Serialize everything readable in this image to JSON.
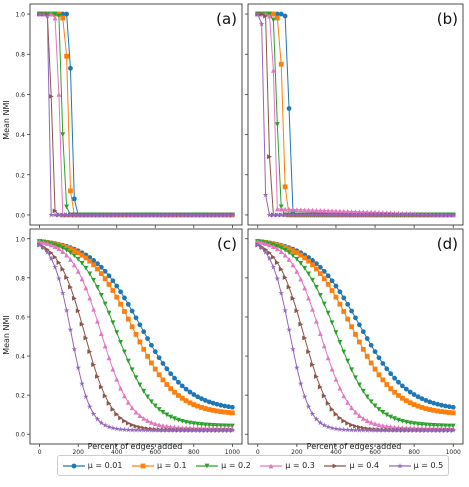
{
  "chart_data": {
    "type": "line",
    "title": "",
    "shared_xlabel": "Percent of edges added",
    "shared_ylabel": "Mean NMI",
    "series_names": [
      "μ = 0.01",
      "μ = 0.1",
      "μ = 0.2",
      "μ = 0.3",
      "μ = 0.4",
      "μ = 0.5"
    ],
    "series_colors": [
      "#1f77b4",
      "#ff7f0e",
      "#2ca02c",
      "#e377c2",
      "#8c564b",
      "#9467bd"
    ],
    "series_markers": [
      "circle",
      "square",
      "triangle-down",
      "triangle-up",
      "triangle-right",
      "star"
    ],
    "xlim": [
      -50,
      1050
    ],
    "ylim": [
      -0.05,
      1.05
    ],
    "xticks": [
      0,
      200,
      400,
      600,
      800,
      1000
    ],
    "yticks": [
      0.0,
      0.2,
      0.4,
      0.6,
      0.8,
      1.0
    ],
    "legend_position": "bottom-center",
    "grid": false,
    "panels": [
      {
        "label": "(a)",
        "series": [
          {
            "name": "μ = 0.01",
            "x": [
              0,
              20,
              40,
              60,
              80,
              100,
              120,
              140,
              160,
              180,
              200,
              1000
            ],
            "y": [
              1,
              1,
              1,
              1,
              1,
              1,
              1,
              1,
              0.73,
              0.08,
              0,
              0
            ]
          },
          {
            "name": "μ = 0.1",
            "x": [
              0,
              20,
              40,
              60,
              80,
              100,
              120,
              140,
              160,
              180,
              1000
            ],
            "y": [
              1,
              1,
              1,
              1,
              1,
              1,
              0.98,
              0.79,
              0.12,
              0,
              0
            ]
          },
          {
            "name": "μ = 0.2",
            "x": [
              0,
              20,
              40,
              60,
              80,
              100,
              120,
              140,
              160,
              1000
            ],
            "y": [
              1,
              1,
              1,
              1,
              1,
              0.99,
              0.4,
              0.04,
              0,
              0
            ]
          },
          {
            "name": "μ = 0.3",
            "x": [
              0,
              20,
              40,
              60,
              80,
              100,
              120,
              1000
            ],
            "y": [
              1,
              1,
              1,
              1,
              0.98,
              0.6,
              0,
              0
            ]
          },
          {
            "name": "μ = 0.4",
            "x": [
              0,
              20,
              40,
              60,
              80,
              100,
              1000
            ],
            "y": [
              1,
              1,
              1,
              0.59,
              0.02,
              0,
              0
            ]
          },
          {
            "name": "μ = 0.5",
            "x": [
              0,
              20,
              40,
              60,
              1000
            ],
            "y": [
              1,
              1,
              0.99,
              0,
              0
            ]
          }
        ]
      },
      {
        "label": "(b)",
        "series": [
          {
            "name": "μ = 0.01",
            "x": [
              0,
              20,
              40,
              60,
              80,
              100,
              120,
              140,
              160,
              180,
              200,
              1000
            ],
            "y": [
              1,
              1,
              1,
              1,
              1,
              1,
              1,
              0.99,
              0.53,
              0.02,
              0,
              0
            ]
          },
          {
            "name": "μ = 0.1",
            "x": [
              0,
              20,
              40,
              60,
              80,
              100,
              120,
              140,
              160,
              180,
              1000
            ],
            "y": [
              1,
              1,
              1,
              1,
              1,
              0.98,
              0.75,
              0.14,
              0,
              0,
              0
            ]
          },
          {
            "name": "μ = 0.2",
            "x": [
              0,
              20,
              40,
              60,
              80,
              100,
              120,
              140,
              1000
            ],
            "y": [
              1,
              1,
              1,
              1,
              0.97,
              0.45,
              0.04,
              0,
              0
            ]
          },
          {
            "name": "μ = 0.3",
            "x": [
              0,
              20,
              40,
              60,
              80,
              100,
              1000
            ],
            "y": [
              1,
              1,
              1,
              0.99,
              0.72,
              0.03,
              0
            ]
          },
          {
            "name": "μ = 0.4",
            "x": [
              0,
              20,
              40,
              60,
              80,
              1000
            ],
            "y": [
              1,
              1,
              0.99,
              0.29,
              0,
              0
            ]
          },
          {
            "name": "μ = 0.5",
            "x": [
              0,
              20,
              40,
              60,
              1000
            ],
            "y": [
              1,
              0.95,
              0.1,
              0,
              0
            ]
          }
        ]
      },
      {
        "label": "(c)",
        "curve_half_points": {
          "μ = 0.01": 520,
          "μ = 0.1": 480,
          "μ = 0.2": 400,
          "μ = 0.3": 320,
          "μ = 0.4": 235,
          "μ = 0.5": 165
        },
        "curve_end_values": {
          "μ = 0.01": 0.12,
          "μ = 0.1": 0.1,
          "μ = 0.2": 0.04,
          "μ = 0.3": 0.03,
          "μ = 0.4": 0.02,
          "μ = 0.5": 0.02
        }
      },
      {
        "label": "(d)",
        "curve_half_points": {
          "μ = 0.01": 520,
          "μ = 0.1": 480,
          "μ = 0.2": 400,
          "μ = 0.3": 320,
          "μ = 0.4": 235,
          "μ = 0.5": 165
        },
        "curve_end_values": {
          "μ = 0.01": 0.12,
          "μ = 0.1": 0.1,
          "μ = 0.2": 0.04,
          "μ = 0.3": 0.03,
          "μ = 0.4": 0.02,
          "μ = 0.5": 0.02
        }
      }
    ]
  }
}
